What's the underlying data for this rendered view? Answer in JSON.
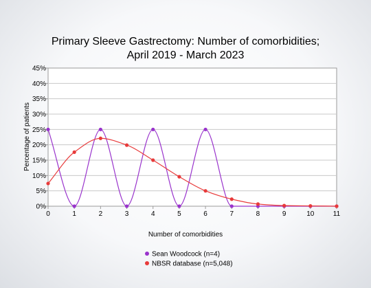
{
  "chart_data": {
    "type": "line",
    "title_lines": [
      "Primary Sleeve Gastrectomy: Number of comorbidities;",
      "April 2019 - March 2023"
    ],
    "xlabel": "Number of comorbidities",
    "ylabel": "Percentage of patients",
    "x": [
      0,
      1,
      2,
      3,
      4,
      5,
      6,
      7,
      8,
      9,
      10,
      11
    ],
    "xlim": [
      0,
      11
    ],
    "ylim": [
      0,
      45
    ],
    "ytick_step": 5,
    "yticks": [
      "0%",
      "5%",
      "10%",
      "15%",
      "20%",
      "25%",
      "30%",
      "35%",
      "40%",
      "45%"
    ],
    "xticks": [
      "0",
      "1",
      "2",
      "3",
      "4",
      "5",
      "6",
      "7",
      "8",
      "9",
      "10",
      "11"
    ],
    "grid": "horizontal",
    "legend_position": "bottom",
    "series": [
      {
        "name": "Sean Woodcock (n=4)",
        "color": "#9933cc",
        "values": [
          25,
          0,
          25,
          0,
          25,
          0,
          25,
          0,
          0,
          0,
          0,
          0
        ]
      },
      {
        "name": "NBSR database (n=5,048)",
        "color": "#e83a3a",
        "values": [
          7.4,
          17.6,
          22.1,
          19.9,
          15,
          9.6,
          5,
          2.3,
          0.7,
          0.2,
          0.1,
          0
        ]
      }
    ]
  }
}
